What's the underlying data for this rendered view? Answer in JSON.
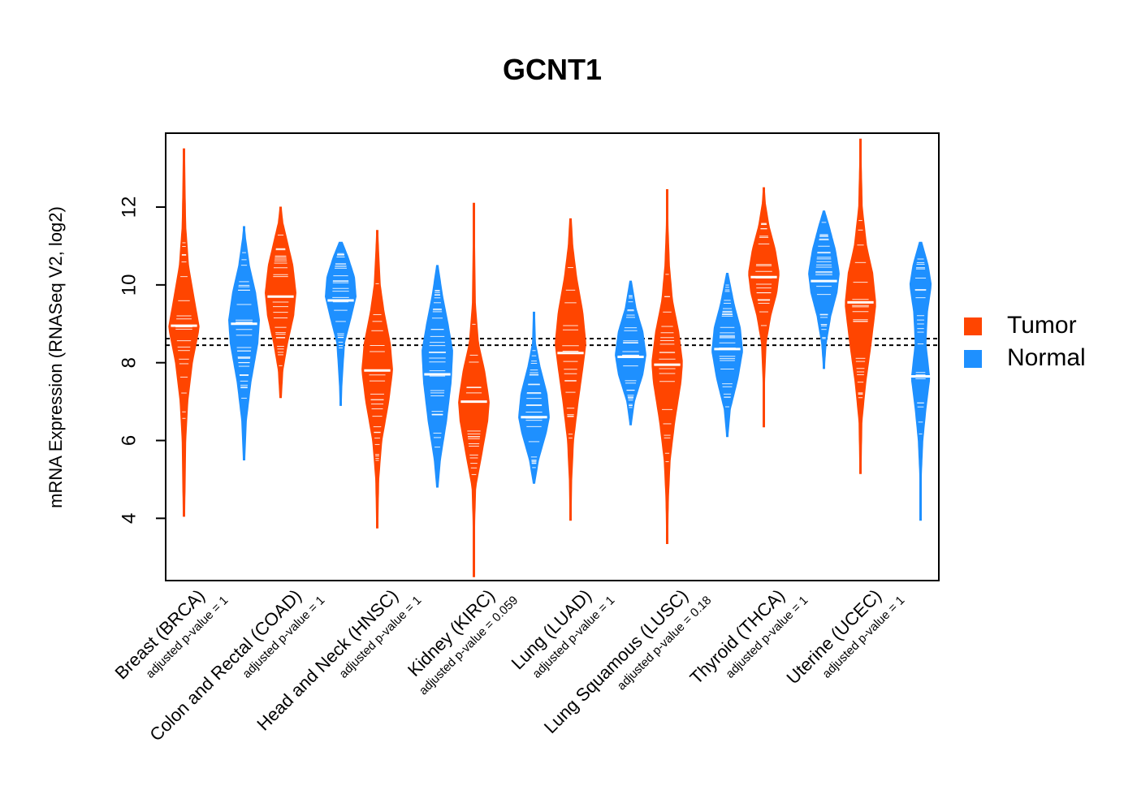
{
  "chart_data": {
    "type": "violin",
    "title": "GCNT1",
    "xlabel": "",
    "ylabel": "mRNA Expression (RNASeq V2, log2)",
    "ylim": [
      2.4,
      13.9
    ],
    "yticks": [
      4,
      6,
      8,
      10,
      12
    ],
    "reference_lines": [
      8.45,
      8.62
    ],
    "colors": {
      "Tumor": "#FF4500",
      "Normal": "#1E90FF"
    },
    "legend": {
      "position": "right",
      "entries": [
        "Tumor",
        "Normal"
      ]
    },
    "categories": [
      {
        "label": "Breast (BRCA)",
        "pvalue_label": "adjusted p-value = 1",
        "tumor": {
          "min": 4.05,
          "max": 13.5,
          "median": 8.95,
          "density": [
            [
              4.1,
              0.05
            ],
            [
              6,
              0.12
            ],
            [
              7,
              0.25
            ],
            [
              8,
              0.55
            ],
            [
              8.9,
              1.0
            ],
            [
              9.8,
              0.6
            ],
            [
              10.5,
              0.3
            ],
            [
              11.5,
              0.12
            ],
            [
              12.6,
              0.07
            ],
            [
              13.5,
              0.04
            ]
          ]
        },
        "normal": {
          "min": 5.5,
          "max": 11.5,
          "median": 9.0,
          "density": [
            [
              5.5,
              0.05
            ],
            [
              6.5,
              0.15
            ],
            [
              7.5,
              0.45
            ],
            [
              8.5,
              0.9
            ],
            [
              9.1,
              1.0
            ],
            [
              9.8,
              0.75
            ],
            [
              10.5,
              0.35
            ],
            [
              11.2,
              0.1
            ],
            [
              11.5,
              0.03
            ]
          ]
        }
      },
      {
        "label": "Colon and Rectal (COAD)",
        "pvalue_label": "adjusted p-value = 1",
        "tumor": {
          "min": 7.1,
          "max": 12.0,
          "median": 9.7,
          "density": [
            [
              7.1,
              0.05
            ],
            [
              7.8,
              0.15
            ],
            [
              8.5,
              0.45
            ],
            [
              9.2,
              0.85
            ],
            [
              9.8,
              1.0
            ],
            [
              10.5,
              0.8
            ],
            [
              11.1,
              0.45
            ],
            [
              11.6,
              0.15
            ],
            [
              12.0,
              0.04
            ]
          ]
        },
        "normal": {
          "min": 6.9,
          "max": 11.1,
          "median": 9.6,
          "density": [
            [
              6.9,
              0.04
            ],
            [
              7.4,
              0.08
            ],
            [
              8.5,
              0.25
            ],
            [
              9.2,
              0.7
            ],
            [
              9.7,
              1.0
            ],
            [
              10.2,
              0.9
            ],
            [
              10.7,
              0.5
            ],
            [
              11.1,
              0.1
            ]
          ]
        }
      },
      {
        "label": "Head and Neck (HNSC)",
        "pvalue_label": "adjusted p-value = 1",
        "tumor": {
          "min": 3.75,
          "max": 11.4,
          "median": 7.8,
          "density": [
            [
              3.8,
              0.04
            ],
            [
              5,
              0.1
            ],
            [
              6,
              0.3
            ],
            [
              7,
              0.75
            ],
            [
              7.8,
              1.0
            ],
            [
              8.5,
              0.85
            ],
            [
              9.3,
              0.45
            ],
            [
              10,
              0.2
            ],
            [
              10.8,
              0.1
            ],
            [
              11.4,
              0.04
            ]
          ]
        },
        "normal": {
          "min": 4.8,
          "max": 10.5,
          "median": 7.7,
          "density": [
            [
              4.8,
              0.05
            ],
            [
              5.5,
              0.2
            ],
            [
              6.5,
              0.6
            ],
            [
              7.5,
              0.9
            ],
            [
              8.3,
              1.0
            ],
            [
              9,
              0.7
            ],
            [
              9.7,
              0.35
            ],
            [
              10.5,
              0.05
            ]
          ]
        }
      },
      {
        "label": "Kidney (KIRC)",
        "pvalue_label": "adjusted p-value = 0.059",
        "tumor": {
          "min": 2.5,
          "max": 12.1,
          "median": 7.0,
          "density": [
            [
              2.5,
              0.03
            ],
            [
              3.8,
              0.05
            ],
            [
              4.8,
              0.12
            ],
            [
              5.5,
              0.45
            ],
            [
              6.5,
              0.9
            ],
            [
              7.0,
              1.0
            ],
            [
              7.8,
              0.7
            ],
            [
              8.5,
              0.3
            ],
            [
              9.5,
              0.1
            ],
            [
              11,
              0.05
            ],
            [
              12.1,
              0.03
            ]
          ]
        },
        "normal": {
          "min": 4.9,
          "max": 9.3,
          "median": 6.6,
          "density": [
            [
              4.9,
              0.05
            ],
            [
              5.5,
              0.3
            ],
            [
              6.2,
              0.8
            ],
            [
              6.6,
              1.0
            ],
            [
              7.2,
              0.85
            ],
            [
              7.9,
              0.4
            ],
            [
              8.5,
              0.1
            ],
            [
              9.3,
              0.04
            ]
          ]
        }
      },
      {
        "label": "Lung (LUAD)",
        "pvalue_label": "adjusted p-value = 1",
        "tumor": {
          "min": 3.95,
          "max": 11.7,
          "median": 8.25,
          "density": [
            [
              4,
              0.04
            ],
            [
              5,
              0.08
            ],
            [
              6,
              0.2
            ],
            [
              7,
              0.5
            ],
            [
              8,
              0.85
            ],
            [
              8.5,
              1.0
            ],
            [
              9.3,
              0.8
            ],
            [
              10.2,
              0.4
            ],
            [
              11,
              0.15
            ],
            [
              11.7,
              0.05
            ]
          ]
        },
        "normal": {
          "min": 6.4,
          "max": 10.1,
          "median": 8.15,
          "density": [
            [
              6.4,
              0.04
            ],
            [
              7,
              0.25
            ],
            [
              7.7,
              0.8
            ],
            [
              8.2,
              1.0
            ],
            [
              8.8,
              0.8
            ],
            [
              9.4,
              0.35
            ],
            [
              10.1,
              0.05
            ]
          ]
        }
      },
      {
        "label": "Lung Squamous (LUSC)",
        "pvalue_label": "adjusted p-value = 0.18",
        "tumor": {
          "min": 3.35,
          "max": 12.45,
          "median": 7.95,
          "density": [
            [
              3.4,
              0.04
            ],
            [
              4.5,
              0.08
            ],
            [
              5.5,
              0.2
            ],
            [
              6.5,
              0.5
            ],
            [
              7.5,
              0.9
            ],
            [
              8,
              1.0
            ],
            [
              8.8,
              0.75
            ],
            [
              9.6,
              0.35
            ],
            [
              10.5,
              0.15
            ],
            [
              11.5,
              0.06
            ],
            [
              12.45,
              0.03
            ]
          ]
        },
        "normal": {
          "min": 6.1,
          "max": 10.3,
          "median": 8.35,
          "density": [
            [
              6.1,
              0.04
            ],
            [
              6.8,
              0.2
            ],
            [
              7.6,
              0.7
            ],
            [
              8.3,
              1.0
            ],
            [
              8.9,
              0.85
            ],
            [
              9.5,
              0.45
            ],
            [
              10.3,
              0.05
            ]
          ]
        }
      },
      {
        "label": "Thyroid (THCA)",
        "pvalue_label": "adjusted p-value = 1",
        "tumor": {
          "min": 6.35,
          "max": 12.5,
          "median": 10.2,
          "density": [
            [
              6.4,
              0.04
            ],
            [
              7.5,
              0.05
            ],
            [
              8.5,
              0.15
            ],
            [
              9.2,
              0.45
            ],
            [
              9.8,
              0.85
            ],
            [
              10.3,
              1.0
            ],
            [
              10.9,
              0.75
            ],
            [
              11.5,
              0.35
            ],
            [
              12.1,
              0.1
            ],
            [
              12.5,
              0.03
            ]
          ]
        },
        "normal": {
          "min": 7.85,
          "max": 11.9,
          "median": 10.1,
          "density": [
            [
              7.9,
              0.04
            ],
            [
              8.5,
              0.15
            ],
            [
              9.2,
              0.45
            ],
            [
              9.8,
              0.85
            ],
            [
              10.3,
              1.0
            ],
            [
              10.9,
              0.75
            ],
            [
              11.5,
              0.35
            ],
            [
              11.9,
              0.05
            ]
          ]
        }
      },
      {
        "label": "Uterine (UCEC)",
        "pvalue_label": "adjusted p-value = 1",
        "tumor": {
          "min": 5.15,
          "max": 13.75,
          "median": 9.55,
          "density": [
            [
              5.2,
              0.04
            ],
            [
              6.5,
              0.1
            ],
            [
              7.5,
              0.35
            ],
            [
              8.5,
              0.7
            ],
            [
              9.5,
              1.0
            ],
            [
              10.3,
              0.8
            ],
            [
              11,
              0.4
            ],
            [
              12,
              0.12
            ],
            [
              13,
              0.06
            ],
            [
              13.75,
              0.03
            ]
          ]
        },
        "normal": {
          "min": 3.95,
          "max": 11.1,
          "median": 7.65,
          "density": [
            [
              3.95,
              0.04
            ],
            [
              5,
              0.04
            ],
            [
              6,
              0.15
            ],
            [
              6.8,
              0.35
            ],
            [
              7.6,
              0.6
            ],
            [
              8.5,
              0.35
            ],
            [
              9.3,
              0.45
            ],
            [
              10,
              0.7
            ],
            [
              10.5,
              0.5
            ],
            [
              11.1,
              0.08
            ]
          ]
        }
      }
    ]
  }
}
